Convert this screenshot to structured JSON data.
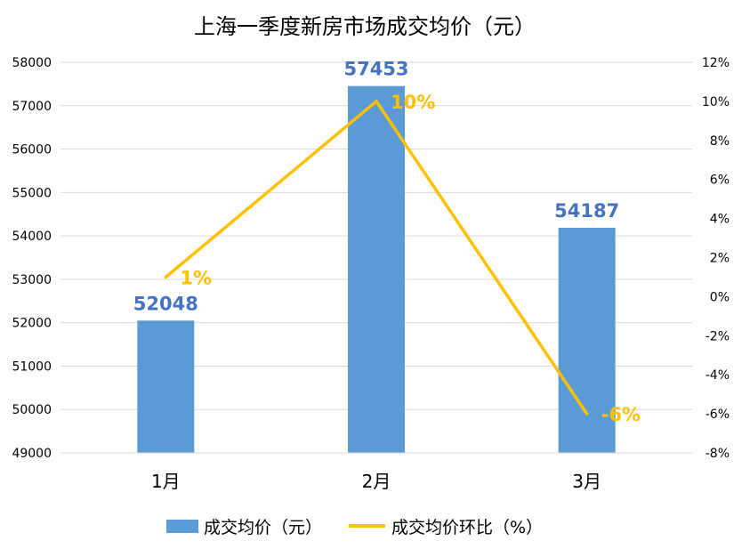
{
  "chart_data": {
    "type": "bar",
    "title": "上海一季度新房市场成交均价（元）",
    "categories": [
      "1月",
      "2月",
      "3月"
    ],
    "series": [
      {
        "name": "成交均价（元）",
        "kind": "bar",
        "axis": "left",
        "color": "#5B9BD5",
        "values": [
          52048,
          57453,
          54187
        ],
        "labels": [
          "52048",
          "57453",
          "54187"
        ],
        "label_color": "#4472C4"
      },
      {
        "name": "成交均价环比（%）",
        "kind": "line",
        "axis": "right",
        "color": "#FFC000",
        "values": [
          1,
          10,
          -6
        ],
        "labels": [
          "1%",
          "10%",
          "-6%"
        ],
        "label_color": "#FFC000"
      }
    ],
    "y_left": {
      "min": 49000,
      "max": 58000,
      "ticks": [
        "49000",
        "50000",
        "51000",
        "52000",
        "53000",
        "54000",
        "55000",
        "56000",
        "57000",
        "58000"
      ]
    },
    "y_right": {
      "min": -8,
      "max": 12,
      "ticks": [
        "-8%",
        "-6%",
        "-4%",
        "-2%",
        "0%",
        "2%",
        "4%",
        "6%",
        "8%",
        "10%",
        "12%"
      ]
    },
    "grid": true,
    "legend_position": "bottom"
  }
}
